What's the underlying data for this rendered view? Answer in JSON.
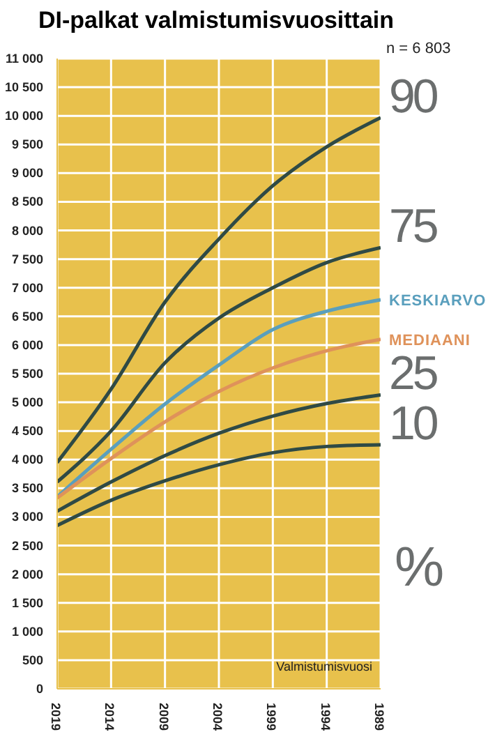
{
  "chart_data": {
    "type": "line",
    "title": "DI-palkat valmistumisvuosittain",
    "xlabel": "Valmistumisvuosi",
    "annotations": [
      "n = 6 803",
      "%"
    ],
    "x": [
      2019,
      2014,
      2009,
      2004,
      1999,
      1994,
      1989
    ],
    "xlim": [
      2019,
      1989
    ],
    "xticks": [
      2019,
      2014,
      2009,
      2004,
      1999,
      1994,
      1989
    ],
    "ylim": [
      0,
      11000
    ],
    "yticks": [
      {
        "value": 0,
        "label": "0"
      },
      {
        "value": 500,
        "label": "500"
      },
      {
        "value": 1000,
        "label": "1 000"
      },
      {
        "value": 1500,
        "label": "1 500"
      },
      {
        "value": 2000,
        "label": "2 000"
      },
      {
        "value": 2500,
        "label": "2 500"
      },
      {
        "value": 3000,
        "label": "3 000"
      },
      {
        "value": 3500,
        "label": "3 500"
      },
      {
        "value": 4000,
        "label": "4 000"
      },
      {
        "value": 4500,
        "label": "4 500"
      },
      {
        "value": 5000,
        "label": "5 000"
      },
      {
        "value": 5500,
        "label": "5 500"
      },
      {
        "value": 6000,
        "label": "6 000"
      },
      {
        "value": 6500,
        "label": "6 500"
      },
      {
        "value": 7000,
        "label": "7 000"
      },
      {
        "value": 7500,
        "label": "7 500"
      },
      {
        "value": 8000,
        "label": "8 000"
      },
      {
        "value": 8500,
        "label": "8 500"
      },
      {
        "value": 9000,
        "label": "9 000"
      },
      {
        "value": 9500,
        "label": "9 500"
      },
      {
        "value": 10000,
        "label": "10 000"
      },
      {
        "value": 10500,
        "label": "10 500"
      },
      {
        "value": 11000,
        "label": "11 000"
      }
    ],
    "grid": true,
    "legend": false,
    "marker": "none",
    "line_style": "solid",
    "series": [
      {
        "name": "90",
        "color": "#2f4a45",
        "values": [
          3950,
          5230,
          6750,
          7850,
          8780,
          9460,
          9970
        ]
      },
      {
        "name": "75",
        "color": "#2f4a45",
        "values": [
          3610,
          4500,
          5690,
          6470,
          7000,
          7440,
          7700
        ]
      },
      {
        "name": "KESKIARVO",
        "color": "#5a9fbd",
        "values": [
          3350,
          4180,
          4970,
          5650,
          6270,
          6590,
          6790
        ]
      },
      {
        "name": "MEDIAANI",
        "color": "#df925a",
        "values": [
          3330,
          4020,
          4660,
          5190,
          5600,
          5900,
          6100
        ]
      },
      {
        "name": "25",
        "color": "#2f4a45",
        "values": [
          3100,
          3610,
          4070,
          4460,
          4760,
          4980,
          5130
        ]
      },
      {
        "name": "10",
        "color": "#2f4a45",
        "values": [
          2850,
          3290,
          3630,
          3910,
          4120,
          4230,
          4260
        ]
      }
    ]
  }
}
